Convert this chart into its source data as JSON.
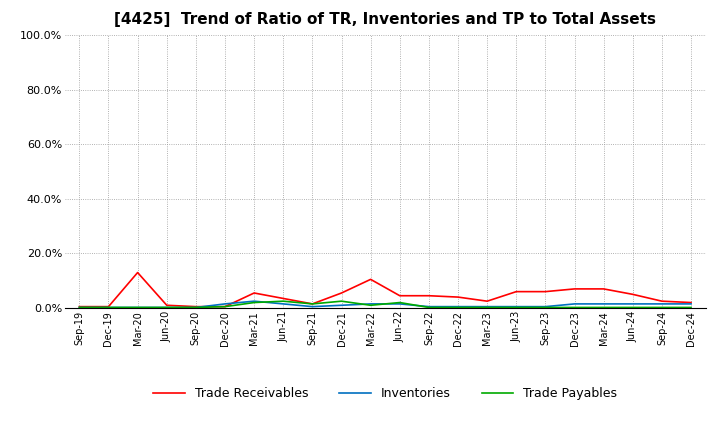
{
  "title": "[4425]  Trend of Ratio of TR, Inventories and TP to Total Assets",
  "labels": [
    "Sep-19",
    "Dec-19",
    "Mar-20",
    "Jun-20",
    "Sep-20",
    "Dec-20",
    "Mar-21",
    "Jun-21",
    "Sep-21",
    "Dec-21",
    "Mar-22",
    "Jun-22",
    "Sep-22",
    "Dec-22",
    "Mar-23",
    "Jun-23",
    "Sep-23",
    "Dec-23",
    "Mar-24",
    "Jun-24",
    "Sep-24",
    "Dec-24"
  ],
  "trade_receivables": [
    0.5,
    0.5,
    13.0,
    1.0,
    0.5,
    0.5,
    5.5,
    3.5,
    1.5,
    5.5,
    10.5,
    4.5,
    4.5,
    4.0,
    2.5,
    6.0,
    6.0,
    7.0,
    7.0,
    5.0,
    2.5,
    2.0
  ],
  "inventories": [
    0.2,
    0.2,
    0.2,
    0.2,
    0.2,
    1.5,
    2.5,
    1.5,
    0.5,
    1.0,
    1.5,
    1.5,
    0.5,
    0.5,
    0.5,
    0.5,
    0.5,
    1.5,
    1.5,
    1.5,
    1.5,
    1.5
  ],
  "trade_payables": [
    0.2,
    0.2,
    0.2,
    0.2,
    0.2,
    0.5,
    2.0,
    2.5,
    1.5,
    2.5,
    1.0,
    2.0,
    0.2,
    0.2,
    0.2,
    0.2,
    0.2,
    0.2,
    0.2,
    0.2,
    0.2,
    0.2
  ],
  "tr_color": "#ff0000",
  "inv_color": "#0070c0",
  "tp_color": "#00aa00",
  "background_color": "#ffffff",
  "grid_color": "#999999",
  "ylim": [
    0,
    100
  ],
  "yticks": [
    0,
    20,
    40,
    60,
    80,
    100
  ],
  "ytick_labels": [
    "0.0%",
    "20.0%",
    "40.0%",
    "60.0%",
    "80.0%",
    "100.0%"
  ]
}
